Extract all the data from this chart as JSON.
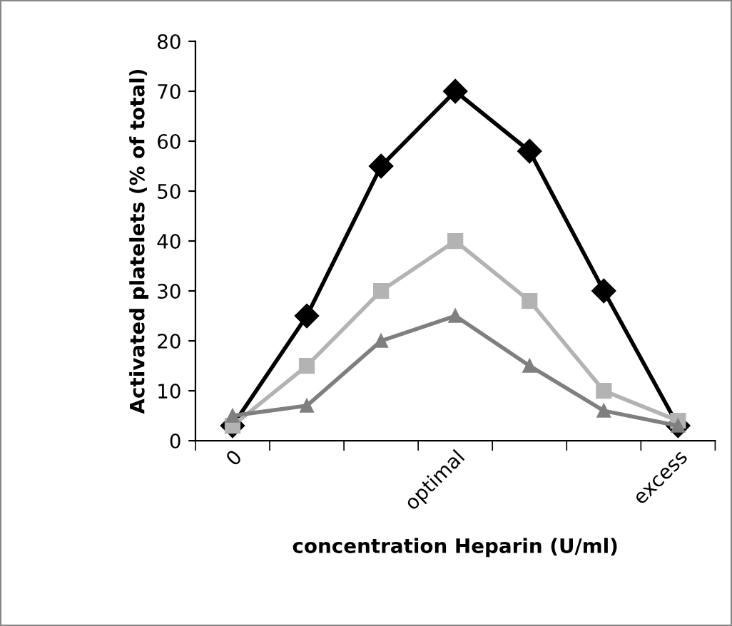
{
  "chart_data": {
    "type": "line",
    "xlabel": "concentration Heparin (U/ml)",
    "ylabel": "Activated platelets (% of total)",
    "categories": [
      "0",
      null,
      null,
      "optimal",
      null,
      null,
      "excess"
    ],
    "series": [
      {
        "color": "#000000",
        "marker": "diamond",
        "values": [
          3,
          25,
          55,
          70,
          58,
          30,
          3
        ]
      },
      {
        "color": "#b3b3b3",
        "marker": "square",
        "values": [
          3,
          15,
          30,
          40,
          28,
          10,
          4
        ]
      },
      {
        "color": "#7f7f7f",
        "marker": "triangle",
        "values": [
          5,
          7,
          20,
          25,
          15,
          6,
          3
        ]
      }
    ],
    "ylim": [
      0,
      80
    ],
    "yticks": [
      0,
      10,
      20,
      30,
      40,
      50,
      60,
      70,
      80
    ],
    "grid": false,
    "legend": false,
    "line_style": "solid"
  }
}
